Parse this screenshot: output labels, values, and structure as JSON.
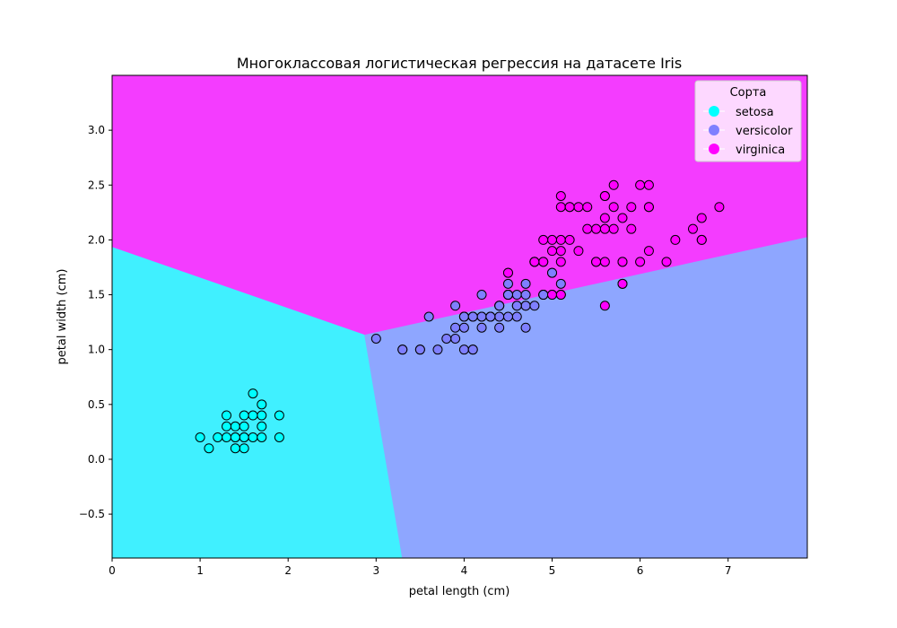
{
  "chart_data": {
    "type": "scatter",
    "title": "Многоклассовая логистическая регрессия на датасете Iris",
    "xlabel": "petal length (cm)",
    "ylabel": "petal width (cm)",
    "xlim": [
      0,
      7.9
    ],
    "ylim": [
      -0.9,
      3.5
    ],
    "xticks": [
      0,
      1,
      2,
      3,
      4,
      5,
      6,
      7
    ],
    "yticks": [
      -0.5,
      0.0,
      0.5,
      1.0,
      1.5,
      2.0,
      2.5,
      3.0
    ],
    "grid": false,
    "legend": {
      "title": "Сорта",
      "placement": "top-right"
    },
    "decision_regions": [
      {
        "class": "setosa",
        "color": "#40f0ff",
        "polygon": [
          [
            0,
            1.94
          ],
          [
            2.87,
            1.14
          ],
          [
            3.3,
            -0.9
          ],
          [
            0,
            -0.9
          ]
        ]
      },
      {
        "class": "versicolor",
        "color": "#8ea6ff",
        "polygon": [
          [
            2.87,
            1.14
          ],
          [
            7.9,
            2.03
          ],
          [
            7.9,
            -0.9
          ],
          [
            3.3,
            -0.9
          ]
        ]
      },
      {
        "class": "virginica",
        "color": "#f43cff",
        "polygon": [
          [
            0,
            3.5
          ],
          [
            7.9,
            3.5
          ],
          [
            7.9,
            2.03
          ],
          [
            2.87,
            1.14
          ],
          [
            0,
            1.94
          ]
        ]
      }
    ],
    "series": [
      {
        "name": "setosa",
        "color": "#00ffff",
        "points": [
          [
            1.4,
            0.2
          ],
          [
            1.3,
            0.2
          ],
          [
            1.5,
            0.2
          ],
          [
            1.7,
            0.4
          ],
          [
            1.4,
            0.3
          ],
          [
            1.5,
            0.1
          ],
          [
            1.6,
            0.2
          ],
          [
            1.1,
            0.1
          ],
          [
            1.2,
            0.2
          ],
          [
            1.0,
            0.2
          ],
          [
            1.7,
            0.5
          ],
          [
            1.9,
            0.2
          ],
          [
            1.6,
            0.4
          ],
          [
            1.5,
            0.4
          ],
          [
            1.3,
            0.4
          ],
          [
            1.4,
            0.1
          ],
          [
            1.3,
            0.3
          ],
          [
            1.5,
            0.3
          ],
          [
            1.9,
            0.4
          ],
          [
            1.6,
            0.6
          ],
          [
            1.7,
            0.2
          ],
          [
            1.7,
            0.3
          ],
          [
            1.5,
            0.2
          ],
          [
            1.4,
            0.2
          ]
        ]
      },
      {
        "name": "versicolor",
        "color": "#7f7fff",
        "points": [
          [
            4.7,
            1.4
          ],
          [
            4.5,
            1.5
          ],
          [
            4.9,
            1.5
          ],
          [
            4.0,
            1.3
          ],
          [
            4.6,
            1.5
          ],
          [
            3.3,
            1.0
          ],
          [
            4.6,
            1.3
          ],
          [
            3.9,
            1.4
          ],
          [
            3.5,
            1.0
          ],
          [
            4.2,
            1.5
          ],
          [
            4.0,
            1.0
          ],
          [
            4.7,
            1.4
          ],
          [
            3.6,
            1.3
          ],
          [
            4.4,
            1.4
          ],
          [
            4.5,
            1.5
          ],
          [
            4.1,
            1.0
          ],
          [
            4.5,
            1.5
          ],
          [
            3.9,
            1.1
          ],
          [
            4.8,
            1.8
          ],
          [
            4.0,
            1.3
          ],
          [
            4.9,
            1.5
          ],
          [
            4.7,
            1.2
          ],
          [
            4.3,
            1.3
          ],
          [
            4.4,
            1.4
          ],
          [
            4.8,
            1.4
          ],
          [
            5.0,
            1.7
          ],
          [
            4.5,
            1.5
          ],
          [
            3.8,
            1.1
          ],
          [
            3.7,
            1.0
          ],
          [
            3.9,
            1.2
          ],
          [
            5.1,
            1.6
          ],
          [
            4.5,
            1.5
          ],
          [
            4.7,
            1.5
          ],
          [
            4.4,
            1.3
          ],
          [
            4.1,
            1.3
          ],
          [
            4.0,
            1.3
          ],
          [
            4.4,
            1.2
          ],
          [
            4.6,
            1.4
          ],
          [
            4.0,
            1.2
          ],
          [
            3.3,
            1.0
          ],
          [
            4.2,
            1.3
          ],
          [
            4.2,
            1.2
          ],
          [
            4.2,
            1.3
          ],
          [
            4.3,
            1.3
          ],
          [
            3.0,
            1.1
          ],
          [
            4.1,
            1.3
          ],
          [
            4.5,
            1.6
          ],
          [
            4.6,
            1.4
          ],
          [
            4.7,
            1.6
          ],
          [
            4.9,
            1.5
          ],
          [
            4.5,
            1.7
          ],
          [
            4.8,
            1.8
          ],
          [
            5.0,
            1.7
          ],
          [
            3.5,
            1.0
          ],
          [
            4.1,
            1.0
          ],
          [
            4.3,
            1.3
          ],
          [
            4.4,
            1.4
          ],
          [
            4.5,
            1.3
          ],
          [
            4.9,
            1.5
          ]
        ]
      },
      {
        "name": "virginica",
        "color": "#ff00ff",
        "points": [
          [
            6.0,
            2.5
          ],
          [
            5.1,
            1.9
          ],
          [
            5.9,
            2.1
          ],
          [
            5.6,
            1.8
          ],
          [
            5.8,
            2.2
          ],
          [
            6.6,
            2.1
          ],
          [
            4.5,
            1.7
          ],
          [
            6.3,
            1.8
          ],
          [
            5.8,
            1.8
          ],
          [
            6.1,
            2.5
          ],
          [
            5.1,
            2.0
          ],
          [
            5.3,
            1.9
          ],
          [
            5.5,
            2.1
          ],
          [
            5.0,
            2.0
          ],
          [
            5.1,
            2.4
          ],
          [
            5.3,
            2.3
          ],
          [
            5.5,
            1.8
          ],
          [
            6.7,
            2.2
          ],
          [
            6.9,
            2.3
          ],
          [
            5.0,
            1.5
          ],
          [
            5.7,
            2.3
          ],
          [
            4.9,
            2.0
          ],
          [
            6.7,
            2.0
          ],
          [
            4.9,
            1.8
          ],
          [
            5.7,
            2.1
          ],
          [
            6.0,
            1.8
          ],
          [
            4.8,
            1.8
          ],
          [
            4.9,
            1.8
          ],
          [
            5.6,
            2.1
          ],
          [
            5.8,
            1.6
          ],
          [
            6.1,
            1.9
          ],
          [
            6.4,
            2.0
          ],
          [
            5.6,
            2.2
          ],
          [
            5.1,
            1.5
          ],
          [
            5.6,
            1.4
          ],
          [
            6.1,
            2.3
          ],
          [
            5.6,
            2.4
          ],
          [
            5.5,
            1.8
          ],
          [
            4.8,
            1.8
          ],
          [
            5.4,
            2.1
          ],
          [
            5.6,
            2.4
          ],
          [
            5.1,
            2.3
          ],
          [
            5.9,
            2.3
          ],
          [
            5.7,
            2.5
          ],
          [
            5.2,
            2.3
          ],
          [
            5.0,
            1.9
          ],
          [
            5.2,
            2.0
          ],
          [
            5.4,
            2.3
          ],
          [
            5.1,
            1.8
          ],
          [
            5.0,
            1.5
          ],
          [
            5.8,
            1.8
          ],
          [
            6.1,
            2.3
          ],
          [
            5.1,
            1.5
          ],
          [
            5.2,
            2.3
          ],
          [
            5.8,
            1.6
          ],
          [
            6.7,
            2.0
          ]
        ]
      }
    ]
  }
}
